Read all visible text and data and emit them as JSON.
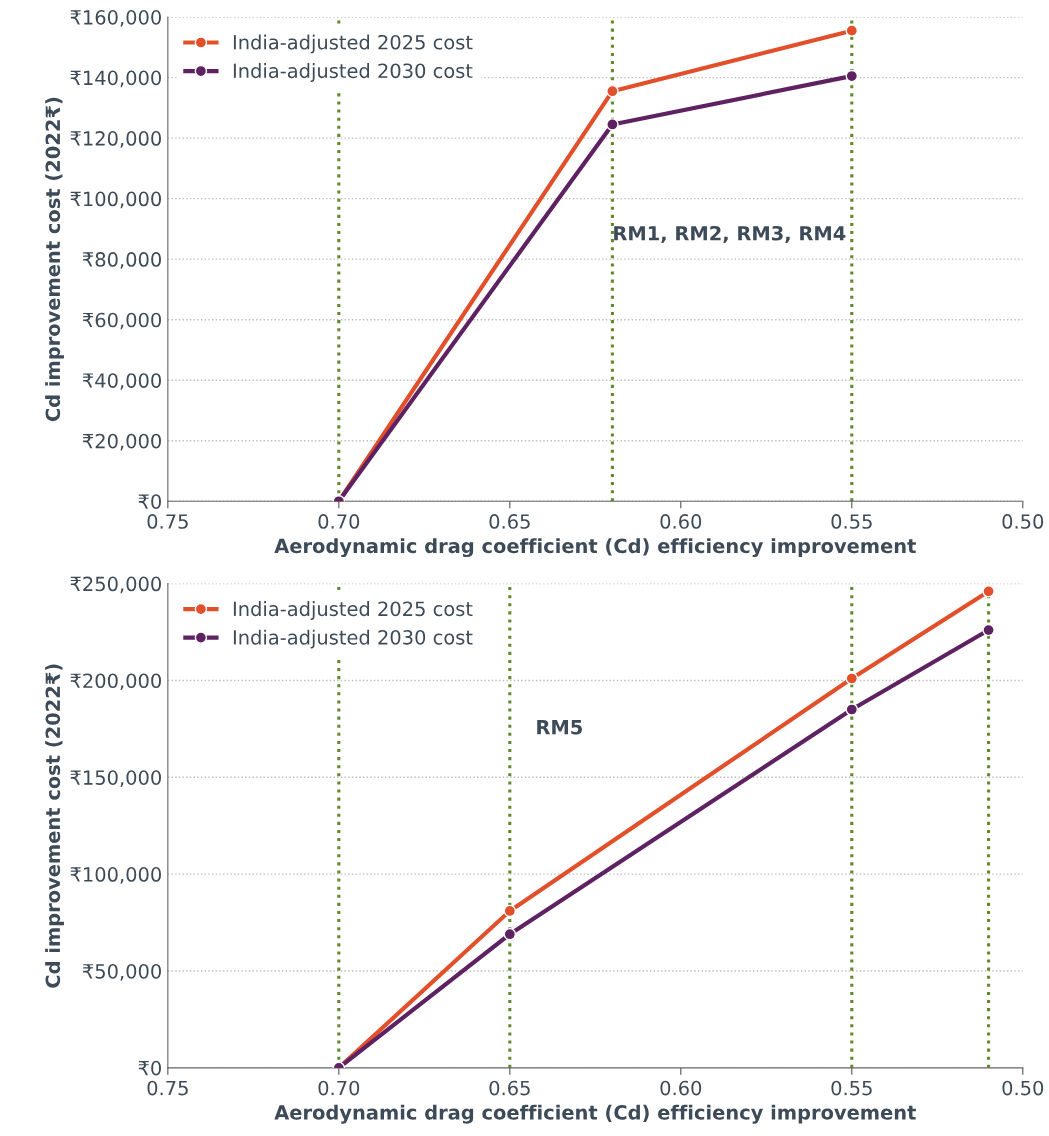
{
  "chart_data": [
    {
      "type": "line",
      "xlabel": "Aerodynamic drag coefficient (Cd) efficiency improvement",
      "ylabel": "Cd improvement cost (2022₹)",
      "series": [
        {
          "name": "India-adjusted 2025 cost",
          "color": "#e1502b",
          "x": [
            0.7,
            0.62,
            0.55
          ],
          "values": [
            0,
            135500,
            155500
          ]
        },
        {
          "name": "India-adjusted 2030 cost",
          "color": "#5e2263",
          "x": [
            0.7,
            0.62,
            0.55
          ],
          "values": [
            0,
            124500,
            140500
          ]
        }
      ],
      "xlim": [
        0.75,
        0.5
      ],
      "xticks": [
        {
          "value": 0.75,
          "label": "0.75"
        },
        {
          "value": 0.7,
          "label": "0.70"
        },
        {
          "value": 0.65,
          "label": "0.65"
        },
        {
          "value": 0.6,
          "label": "0.60"
        },
        {
          "value": 0.55,
          "label": "0.55"
        },
        {
          "value": 0.5,
          "label": "0.50"
        }
      ],
      "ylim": [
        0,
        160000
      ],
      "yticks": [
        {
          "value": 0,
          "label": "₹0"
        },
        {
          "value": 20000,
          "label": "₹20,000"
        },
        {
          "value": 40000,
          "label": "₹40,000"
        },
        {
          "value": 60000,
          "label": "₹60,000"
        },
        {
          "value": 80000,
          "label": "₹80,000"
        },
        {
          "value": 100000,
          "label": "₹100,000"
        },
        {
          "value": 120000,
          "label": "₹120,000"
        },
        {
          "value": 140000,
          "label": "₹140,000"
        },
        {
          "value": 160000,
          "label": "₹160,000"
        }
      ],
      "ref_lines": [
        {
          "axis": "x",
          "value": 0.7,
          "color": "#5e8a2a",
          "line_style": "dotted"
        },
        {
          "axis": "x",
          "value": 0.62,
          "color": "#5e8a2a",
          "line_style": "dotted"
        },
        {
          "axis": "x",
          "value": 0.55,
          "color": "#5e8a2a",
          "line_style": "dotted"
        }
      ],
      "annotations": [
        {
          "text": "RM1, RM2, RM3, RM4",
          "x": 0.62,
          "y": 88000
        }
      ],
      "grid": "y",
      "legend": "top left",
      "marker": "circle",
      "line_style": "solid"
    },
    {
      "type": "line",
      "xlabel": "Aerodynamic drag coefficient (Cd) efficiency improvement",
      "ylabel": "Cd improvement cost (2022₹)",
      "series": [
        {
          "name": "India-adjusted 2025 cost",
          "color": "#e1502b",
          "x": [
            0.7,
            0.65,
            0.55,
            0.51
          ],
          "values": [
            0,
            81000,
            201000,
            246000
          ]
        },
        {
          "name": "India-adjusted 2030 cost",
          "color": "#5e2263",
          "x": [
            0.7,
            0.65,
            0.55,
            0.51
          ],
          "values": [
            0,
            69000,
            185000,
            226000
          ]
        }
      ],
      "xlim": [
        0.75,
        0.5
      ],
      "xticks": [
        {
          "value": 0.75,
          "label": "0.75"
        },
        {
          "value": 0.7,
          "label": "0.70"
        },
        {
          "value": 0.65,
          "label": "0.65"
        },
        {
          "value": 0.6,
          "label": "0.60"
        },
        {
          "value": 0.55,
          "label": "0.55"
        },
        {
          "value": 0.5,
          "label": "0.50"
        }
      ],
      "ylim": [
        0,
        250000
      ],
      "yticks": [
        {
          "value": 0,
          "label": "₹0"
        },
        {
          "value": 50000,
          "label": "₹50,000"
        },
        {
          "value": 100000,
          "label": "₹100,000"
        },
        {
          "value": 150000,
          "label": "₹150,000"
        },
        {
          "value": 200000,
          "label": "₹200,000"
        },
        {
          "value": 250000,
          "label": "₹250,000"
        }
      ],
      "ref_lines": [
        {
          "axis": "x",
          "value": 0.7,
          "color": "#5e8a2a",
          "line_style": "dotted"
        },
        {
          "axis": "x",
          "value": 0.65,
          "color": "#5e8a2a",
          "line_style": "dotted"
        },
        {
          "axis": "x",
          "value": 0.55,
          "color": "#5e8a2a",
          "line_style": "dotted"
        },
        {
          "axis": "x",
          "value": 0.51,
          "color": "#5e8a2a",
          "line_style": "dotted"
        }
      ],
      "annotations": [
        "RM5"
      ],
      "grid": "y",
      "legend": "top left",
      "marker": "circle",
      "line_style": "solid"
    }
  ]
}
